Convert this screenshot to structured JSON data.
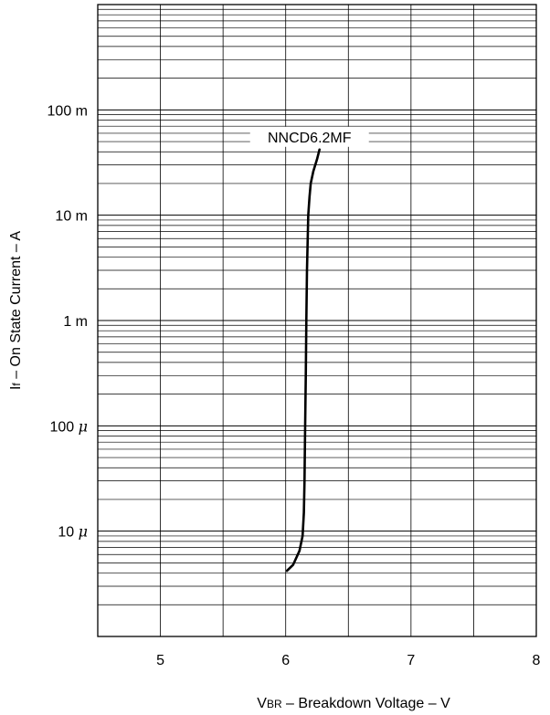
{
  "chart_data": {
    "type": "line",
    "x_scale": "linear",
    "y_scale": "log",
    "xlim": [
      4.5,
      8
    ],
    "ylim": [
      1e-06,
      1
    ],
    "x_ticks": [
      5,
      6,
      7,
      8
    ],
    "x_tick_labels": [
      "5",
      "6",
      "7",
      "8"
    ],
    "y_ticks": [
      1e-05,
      0.0001,
      0.001,
      0.01,
      0.1
    ],
    "y_tick_labels": [
      {
        "num": "10",
        "unit": "μ"
      },
      {
        "num": "100",
        "unit": "μ"
      },
      {
        "num": "1",
        "unit": "m"
      },
      {
        "num": "10",
        "unit": "m"
      },
      {
        "num": "100",
        "unit": "m"
      }
    ],
    "xlabel": {
      "main": "V",
      "sub": "BR",
      "rest": " – Breakdown Voltage – V"
    },
    "ylabel": {
      "main": "I",
      "sub": "f",
      "rest": " – On State Current – A"
    },
    "grid": true,
    "series": [
      {
        "name": "NNCD6.2MF",
        "x": [
          6.01,
          6.06,
          6.11,
          6.135,
          6.145,
          6.15,
          6.155,
          6.16,
          6.165,
          6.17,
          6.18,
          6.19,
          6.2,
          6.22,
          6.25,
          6.27
        ],
        "y": [
          4.2e-06,
          4.8e-06,
          6.5e-06,
          9e-06,
          1.5e-05,
          3e-05,
          0.0001,
          0.0003,
          0.001,
          0.003,
          0.01,
          0.015,
          0.02,
          0.026,
          0.034,
          0.042
        ]
      }
    ]
  }
}
